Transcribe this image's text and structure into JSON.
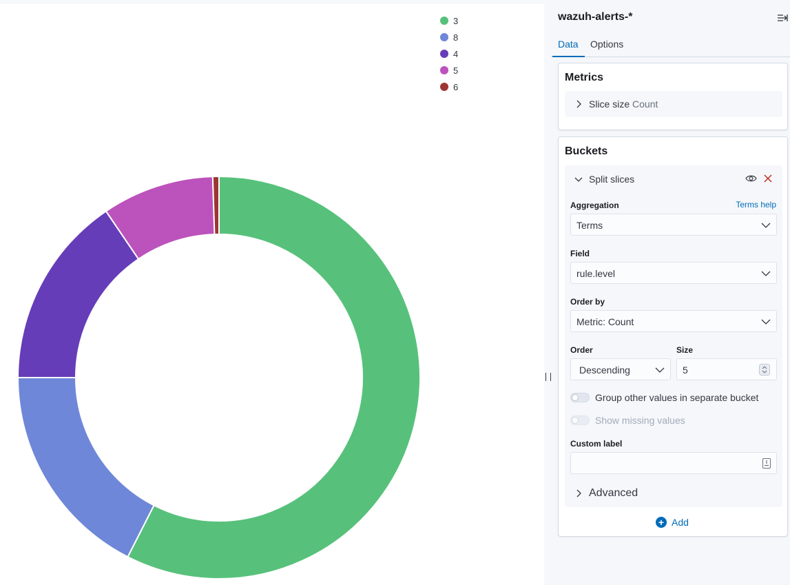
{
  "panel": {
    "index_pattern": "wazuh-alerts-*",
    "tabs": [
      {
        "label": "Data"
      },
      {
        "label": "Options"
      }
    ],
    "metrics": {
      "title": "Metrics",
      "slice_size_label": "Slice size",
      "slice_size_value": "Count"
    },
    "buckets": {
      "title": "Buckets",
      "split_label": "Split slices",
      "aggregation_label": "Aggregation",
      "terms_help": "Terms help",
      "aggregation_value": "Terms",
      "field_label": "Field",
      "field_value": "rule.level",
      "order_by_label": "Order by",
      "order_by_value": "Metric: Count",
      "order_label": "Order",
      "order_value": "Descending",
      "size_label": "Size",
      "size_value": "5",
      "group_other_label": "Group other values in separate bucket",
      "show_missing_label": "Show missing values",
      "custom_label_label": "Custom label",
      "custom_label_value": "",
      "advanced_label": "Advanced",
      "add_label": "Add"
    }
  },
  "chart_data": {
    "type": "pie",
    "donut": true,
    "categories": [
      "3",
      "8",
      "4",
      "5",
      "6"
    ],
    "values": [
      57.5,
      17.5,
      15.5,
      9.0,
      0.5
    ],
    "colors": [
      "#54b399",
      "#6092c0",
      "#6541b8",
      "#b954b8",
      "#9b2f2f"
    ],
    "legend_position": "top-right"
  },
  "colors": {
    "accent": "#006bb8",
    "slice_colors": [
      "#57c17b",
      "#6f87d8",
      "#663db8",
      "#bc52bc",
      "#9e3533"
    ],
    "delete_icon": "#bd271e"
  },
  "icons": {
    "collapse": "collapse-panel-icon",
    "eye": "eye-icon",
    "delete": "cross-icon",
    "add": "plus-circle-icon"
  }
}
